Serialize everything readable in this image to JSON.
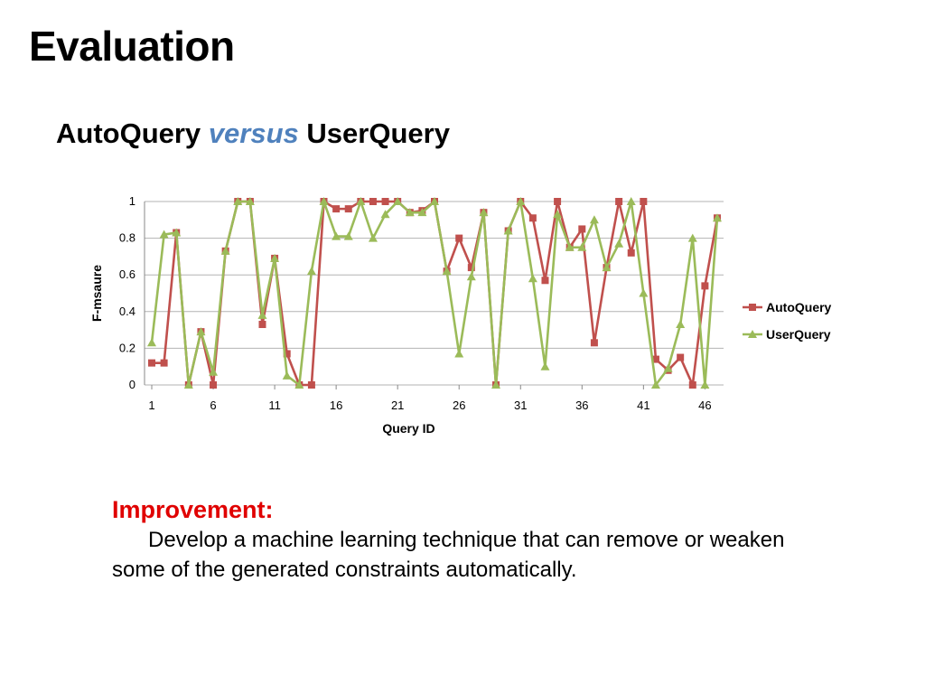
{
  "slide": {
    "title": "Evaluation",
    "subtitle_part1": "AutoQuery",
    "subtitle_emphasis": "versus",
    "subtitle_part2": "UserQuery"
  },
  "improvement": {
    "heading": "Improvement:",
    "text": "Develop a machine learning technique that can remove or weaken some of the generated constraints automatically."
  },
  "colors": {
    "autoquery": "#c0504d",
    "userquery": "#9bbb59",
    "grid": "#b3b3b3",
    "emphasis": "#4f81bd",
    "heading": "#e00000"
  },
  "chart_data": {
    "type": "line",
    "xlabel": "Query ID",
    "ylabel": "F-msaure",
    "ylim": [
      0,
      1
    ],
    "yticks": [
      0,
      0.2,
      0.4,
      0.6,
      0.8,
      1
    ],
    "yticklabels": [
      "0",
      "0.2",
      "0.4",
      "0.6",
      "0.8",
      "1"
    ],
    "xticks": [
      1,
      6,
      11,
      16,
      21,
      26,
      31,
      36,
      41,
      46
    ],
    "x": [
      1,
      2,
      3,
      4,
      5,
      6,
      7,
      8,
      9,
      10,
      11,
      12,
      13,
      14,
      15,
      16,
      17,
      18,
      19,
      20,
      21,
      22,
      23,
      24,
      25,
      26,
      27,
      28,
      29,
      30,
      31,
      32,
      33,
      34,
      35,
      36,
      37,
      38,
      39,
      40,
      41,
      42,
      43,
      44,
      45,
      46,
      47
    ],
    "grid": true,
    "legend_position": "right",
    "series": [
      {
        "name": "AutoQuery",
        "marker": "square",
        "values": [
          0.12,
          0.12,
          0.83,
          0,
          0.29,
          0,
          0.73,
          1,
          1,
          0.33,
          0.69,
          0.17,
          0,
          0,
          1,
          0.96,
          0.96,
          1,
          1,
          1,
          1,
          0.94,
          0.95,
          1,
          0.62,
          0.8,
          0.64,
          0.94,
          0,
          0.84,
          1,
          0.91,
          0.57,
          1,
          0.75,
          0.85,
          0.23,
          0.64,
          1,
          0.72,
          1,
          0.14,
          0.08,
          0.15,
          0,
          0.54,
          0.91
        ]
      },
      {
        "name": "UserQuery",
        "marker": "triangle",
        "values": [
          0.23,
          0.82,
          0.83,
          0,
          0.29,
          0.07,
          0.73,
          1,
          1,
          0.38,
          0.69,
          0.05,
          0,
          0.62,
          1,
          0.81,
          0.81,
          1,
          0.8,
          0.93,
          1,
          0.94,
          0.94,
          1,
          0.62,
          0.17,
          0.59,
          0.94,
          0,
          0.84,
          1,
          0.58,
          0.1,
          0.93,
          0.75,
          0.75,
          0.9,
          0.64,
          0.77,
          1,
          0.5,
          0,
          0.09,
          0.33,
          0.8,
          0,
          0.91
        ]
      }
    ]
  }
}
